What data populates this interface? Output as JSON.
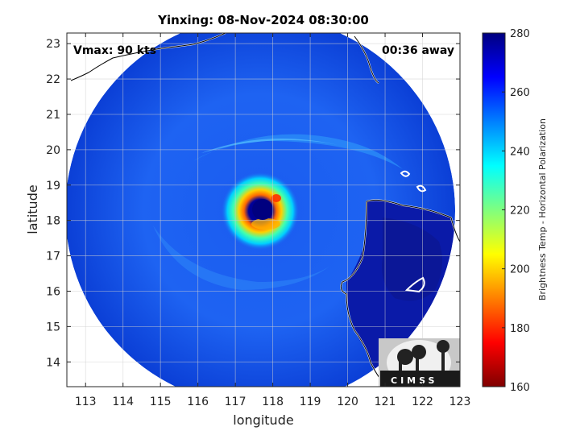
{
  "chart_data": {
    "type": "heatmap",
    "title": "Yinxing: 08-Nov-2024 08:30:00",
    "xlabel": "longitude",
    "ylabel": "latitude",
    "xlim": [
      112.5,
      123
    ],
    "ylim": [
      13.3,
      23.3
    ],
    "x_ticks": [
      113,
      114,
      115,
      116,
      117,
      118,
      119,
      120,
      121,
      122,
      123
    ],
    "y_ticks": [
      14,
      15,
      16,
      17,
      18,
      19,
      20,
      21,
      22,
      23
    ],
    "grid": true,
    "annotations": {
      "vmax": "Vmax: 90 kts",
      "time_away": "00:36 away"
    },
    "colorbar": {
      "label": "Brightness Temp - Horizontal Polarization",
      "range": [
        160,
        280
      ],
      "ticks": [
        160,
        180,
        200,
        220,
        240,
        260,
        280
      ],
      "colormap": "jet"
    },
    "swath": {
      "center": [
        117.9,
        18.3
      ],
      "radius_deg": 5.0
    },
    "storm_eye": {
      "center": [
        117.7,
        18.3
      ],
      "eye_temp": 275,
      "eyewall_min_temp": 185
    },
    "logo": "CIMSS"
  }
}
